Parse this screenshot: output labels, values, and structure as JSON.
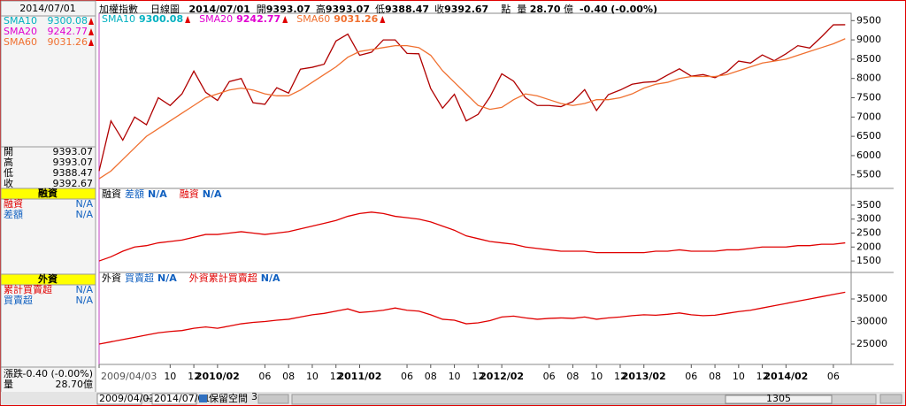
{
  "header": {
    "name": "加權指數",
    "period": "日線圖",
    "date": "2014/07/01",
    "ohlc": [
      {
        "label": "開",
        "value": "9393.07"
      },
      {
        "label": "高",
        "value": "9393.07"
      },
      {
        "label": "低",
        "value": "9388.47"
      },
      {
        "label": "收",
        "value": "9392.67"
      }
    ],
    "unit": "點",
    "volume_label": "量",
    "volume": "28.70",
    "volume_unit": "億",
    "change": "-0.40",
    "change_pct": "(-0.00%)"
  },
  "side": {
    "change_label": "漲跌",
    "foreign_items": [
      {
        "name": "累計買賣超",
        "value": "N/A"
      },
      {
        "name": "買賣超",
        "value": "N/A"
      }
    ]
  },
  "toolbar": {
    "start": "2009/04/03",
    "sep": "~",
    "end": "2014/07/01",
    "reserve": "保留空間",
    "reserve_n": "3",
    "position": "1305"
  },
  "chart_data": [
    {
      "type": "line",
      "color": "#b00000",
      "x": [
        0,
        1,
        2,
        3,
        4,
        5,
        6,
        7,
        8,
        9,
        10,
        11,
        12,
        13,
        14,
        15,
        16,
        17,
        18,
        19,
        20,
        21,
        22,
        23,
        24,
        25,
        26,
        27,
        28,
        29,
        30,
        31,
        32,
        33,
        34,
        35,
        36,
        37,
        38,
        39,
        40,
        41,
        42,
        43,
        44,
        45,
        46,
        47,
        48,
        49,
        50,
        51,
        52,
        53,
        54,
        55,
        56,
        57,
        58,
        59,
        60,
        61,
        62,
        63
      ],
      "values": [
        5600,
        6900,
        6400,
        7000,
        6800,
        7500,
        7300,
        7600,
        8190,
        7640,
        7430,
        7920,
        8000,
        7370,
        7330,
        7760,
        7620,
        8240,
        8290,
        8370,
        8970,
        9150,
        8600,
        8680,
        9000,
        9000,
        8650,
        8640,
        7740,
        7230,
        7590,
        6900,
        7070,
        7520,
        8120,
        7930,
        7500,
        7300,
        7300,
        7270,
        7400,
        7710,
        7170,
        7580,
        7700,
        7850,
        7900,
        7920,
        8090,
        8250,
        8060,
        8100,
        8020,
        8170,
        8450,
        8400,
        8610,
        8460,
        8640,
        8850,
        8790,
        9080,
        9390,
        9393
      ],
      "series": [
        {
          "name": "SMA60",
          "color": "#f07030",
          "reading": "9031.26",
          "values": [
            5400,
            5600,
            5900,
            6200,
            6500,
            6700,
            6900,
            7100,
            7300,
            7500,
            7600,
            7700,
            7750,
            7700,
            7600,
            7550,
            7550,
            7700,
            7900,
            8100,
            8300,
            8550,
            8700,
            8750,
            8800,
            8850,
            8850,
            8800,
            8600,
            8200,
            7900,
            7600,
            7300,
            7200,
            7250,
            7450,
            7600,
            7550,
            7450,
            7350,
            7300,
            7350,
            7450,
            7450,
            7500,
            7600,
            7750,
            7850,
            7900,
            8000,
            8050,
            8050,
            8050,
            8100,
            8200,
            8300,
            8400,
            8450,
            8500,
            8600,
            8700,
            8800,
            8900,
            9031
          ]
        }
      ],
      "indicators": [
        {
          "name": "SMA10",
          "color": "#00b0c0",
          "reading": "9300.08"
        },
        {
          "name": "SMA20",
          "color": "#e000d0",
          "reading": "9242.77"
        }
      ],
      "xlim": [
        0,
        63.5
      ],
      "ylim": [
        5150,
        9690
      ],
      "yticks": [
        5500,
        6000,
        6500,
        7000,
        7500,
        8000,
        8500,
        9000,
        9500
      ],
      "xticks": [
        {
          "value": 0,
          "label": "2009/04/03"
        },
        {
          "value": 6,
          "label": "10"
        },
        {
          "value": 8,
          "label": "12"
        },
        {
          "value": 10,
          "label": "2010/02"
        },
        {
          "value": 14,
          "label": "06"
        },
        {
          "value": 16,
          "label": "08"
        },
        {
          "value": 18,
          "label": "10"
        },
        {
          "value": 20,
          "label": "12"
        },
        {
          "value": 22,
          "label": "2011/02"
        },
        {
          "value": 26,
          "label": "06"
        },
        {
          "value": 28,
          "label": "08"
        },
        {
          "value": 30,
          "label": "10"
        },
        {
          "value": 32,
          "label": "12"
        },
        {
          "value": 34,
          "label": "2012/02"
        },
        {
          "value": 38,
          "label": "06"
        },
        {
          "value": 40,
          "label": "08"
        },
        {
          "value": 42,
          "label": "10"
        },
        {
          "value": 44,
          "label": "12"
        },
        {
          "value": 46,
          "label": "2013/02"
        },
        {
          "value": 50,
          "label": "06"
        },
        {
          "value": 52,
          "label": "08"
        },
        {
          "value": 54,
          "label": "10"
        },
        {
          "value": 56,
          "label": "12"
        },
        {
          "value": 58,
          "label": "2014/02"
        },
        {
          "value": 62,
          "label": "06"
        }
      ],
      "grid": false
    },
    {
      "type": "line",
      "title": "融資",
      "series": [
        {
          "name": "融資",
          "color": "#e00000",
          "reading": "N/A",
          "values": [
            1500,
            1650,
            1850,
            2000,
            2050,
            2150,
            2200,
            2250,
            2350,
            2450,
            2450,
            2500,
            2550,
            2500,
            2450,
            2500,
            2550,
            2650,
            2750,
            2850,
            2950,
            3100,
            3200,
            3250,
            3200,
            3100,
            3050,
            3000,
            2900,
            2750,
            2600,
            2400,
            2300,
            2200,
            2150,
            2100,
            2000,
            1950,
            1900,
            1850,
            1850,
            1850,
            1800,
            1800,
            1800,
            1800,
            1800,
            1850,
            1850,
            1900,
            1850,
            1850,
            1850,
            1900,
            1900,
            1950,
            2000,
            2000,
            2000,
            2050,
            2050,
            2100,
            2100,
            2150
          ]
        }
      ],
      "indicators": [
        {
          "name": "差額",
          "color": "#1060c0",
          "reading": "N/A"
        }
      ],
      "ylim": [
        1090,
        4100
      ],
      "yticks": [
        1500,
        2000,
        2500,
        3000,
        3500
      ]
    },
    {
      "type": "line",
      "title": "外資",
      "series": [
        {
          "name": "外資累計買賣超",
          "color": "#e00000",
          "reading": "N/A",
          "values": [
            25000,
            25500,
            26000,
            26500,
            27000,
            27500,
            27800,
            28000,
            28500,
            28800,
            28500,
            29000,
            29500,
            29800,
            30000,
            30300,
            30500,
            31000,
            31500,
            31800,
            32300,
            32800,
            32000,
            32200,
            32500,
            33000,
            32500,
            32300,
            31500,
            30500,
            30300,
            29500,
            29700,
            30200,
            31000,
            31200,
            30800,
            30500,
            30700,
            30800,
            30700,
            31000,
            30500,
            30800,
            31000,
            31300,
            31500,
            31400,
            31600,
            31900,
            31500,
            31300,
            31400,
            31800,
            32200,
            32500,
            33000,
            33500,
            34000,
            34500,
            35000,
            35500,
            36000,
            36500
          ]
        }
      ],
      "indicators": [
        {
          "name": "買賣超",
          "color": "#1060c0",
          "reading": "N/A"
        }
      ],
      "ylim": [
        20490,
        40880
      ],
      "yticks": [
        25000,
        30000,
        35000
      ]
    }
  ]
}
